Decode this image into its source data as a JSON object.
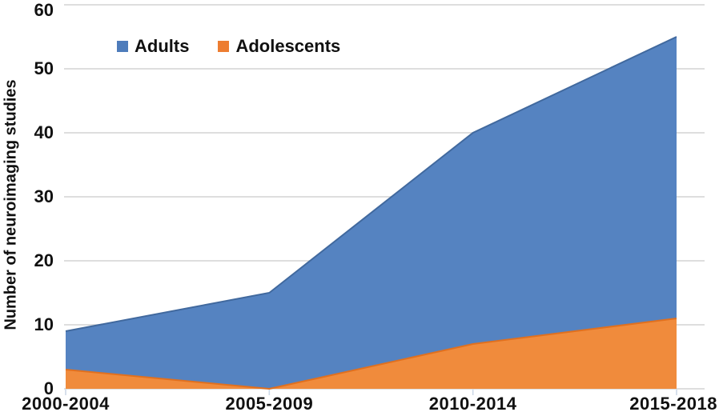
{
  "chart_data": {
    "type": "area",
    "stacked": false,
    "overlapping": true,
    "title": "",
    "categories": [
      "2000-2004",
      "2005-2009",
      "2010-2014",
      "2015-2018"
    ],
    "series": [
      {
        "name": "Adults",
        "color": "#4e7cbb",
        "fill": "#5583c1",
        "edge": "#41699e",
        "values": [
          9,
          15,
          40,
          55
        ]
      },
      {
        "name": "Adolescents",
        "color": "#ed7d31",
        "fill": "#f08b3c",
        "edge": "#e0701f",
        "values": [
          3,
          0,
          7,
          11
        ]
      }
    ],
    "ylabel": "Number of neuroimaging studies",
    "xlabel": "",
    "ylim": [
      0,
      60
    ],
    "yticks": [
      0,
      10,
      20,
      30,
      40,
      50,
      60
    ],
    "grid": true,
    "gridline_color": "#d9d9d9",
    "tick_mark_color": "#cdd9e8",
    "legend_position": "top-left",
    "text_color": "#111111",
    "background_color": "#ffffff"
  }
}
